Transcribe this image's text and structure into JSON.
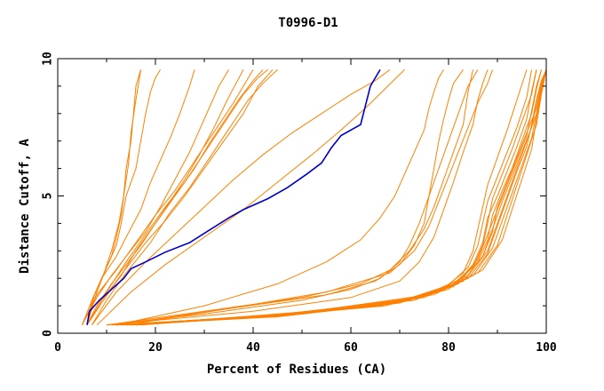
{
  "chart_data": {
    "type": "line",
    "title": "T0996-D1",
    "xlabel": "Percent of Residues (CA)",
    "ylabel": "Distance Cutoff, A",
    "xlim": [
      0,
      100
    ],
    "ylim": [
      0,
      10
    ],
    "x_ticks": [
      "0",
      "20",
      "40",
      "60",
      "80",
      "100"
    ],
    "y_ticks": [
      "0",
      "5",
      "10"
    ],
    "grid": false,
    "legend": "none",
    "colors": {
      "highlight": "#0000cc",
      "others": "#ff8000"
    },
    "highlight_series": {
      "x": [
        6,
        6.5,
        8.5,
        11,
        13.5,
        15,
        18,
        22,
        27,
        31,
        35,
        38,
        43,
        47,
        51,
        54,
        56,
        58,
        62,
        64,
        66
      ],
      "y": [
        0.3,
        0.8,
        1.2,
        1.6,
        2,
        2.35,
        2.6,
        2.95,
        3.3,
        3.75,
        4.2,
        4.5,
        4.9,
        5.3,
        5.8,
        6.2,
        6.75,
        7.2,
        7.6,
        9,
        9.6
      ]
    },
    "series": [
      {
        "x": [
          6,
          7,
          9,
          11,
          12,
          13,
          13.5,
          14,
          15,
          15.5,
          16,
          17
        ],
        "y": [
          0.3,
          1.2,
          2,
          2.8,
          3.5,
          4.3,
          5,
          6,
          7,
          8,
          9,
          9.6
        ]
      },
      {
        "x": [
          6,
          7.5,
          9.5,
          11,
          12.5,
          13.5,
          14.5,
          15,
          16,
          17
        ],
        "y": [
          0.3,
          1.4,
          2.2,
          3,
          4,
          5,
          6.2,
          7.3,
          8.5,
          9.6
        ]
      },
      {
        "x": [
          6,
          8,
          10,
          12,
          13,
          14,
          16,
          17,
          18,
          19,
          20,
          21
        ],
        "y": [
          0.3,
          1.5,
          2.4,
          3.2,
          4,
          5,
          6,
          7,
          8,
          8.8,
          9.3,
          9.6
        ]
      },
      {
        "x": [
          5,
          7,
          9,
          12,
          14,
          17,
          19,
          21,
          23,
          25,
          27,
          28
        ],
        "y": [
          0.3,
          1.2,
          2,
          2.8,
          3.5,
          4.5,
          5.5,
          6.3,
          7.1,
          8,
          9,
          9.6
        ]
      },
      {
        "x": [
          6,
          8,
          11,
          14,
          17,
          20,
          23,
          26,
          29,
          32,
          35,
          38
        ],
        "y": [
          0.3,
          1,
          1.8,
          2.5,
          3.2,
          4,
          4.8,
          5.6,
          6.5,
          7.5,
          8.6,
          9.6
        ]
      },
      {
        "x": [
          6,
          9,
          12,
          15,
          18,
          22,
          26,
          30,
          34,
          38,
          41,
          44
        ],
        "y": [
          0.3,
          1.1,
          1.9,
          2.6,
          3.3,
          4.1,
          5,
          6,
          7,
          8,
          9,
          9.6
        ]
      },
      {
        "x": [
          5,
          8,
          11,
          14,
          18,
          21,
          24,
          27,
          29,
          31,
          33,
          35
        ],
        "y": [
          0.3,
          1.3,
          2.1,
          2.8,
          3.7,
          4.6,
          5.6,
          6.6,
          7.4,
          8.2,
          9,
          9.6
        ]
      },
      {
        "x": [
          6,
          9,
          13,
          16,
          20,
          24,
          28,
          31,
          34,
          37,
          40,
          42
        ],
        "y": [
          0.3,
          1.2,
          2.1,
          3,
          4,
          5,
          6,
          6.9,
          7.7,
          8.5,
          9.2,
          9.6
        ]
      },
      {
        "x": [
          5,
          8,
          12,
          16,
          20,
          24,
          27,
          30,
          33,
          36,
          38,
          40
        ],
        "y": [
          0.3,
          1.4,
          2.3,
          3.3,
          4.3,
          5.2,
          6,
          6.8,
          7.6,
          8.4,
          9,
          9.6
        ]
      },
      {
        "x": [
          7,
          10,
          14,
          19,
          23,
          27,
          30,
          33,
          36,
          39,
          42,
          45
        ],
        "y": [
          0.3,
          1.2,
          2.2,
          3.3,
          4.4,
          5.3,
          6.1,
          6.9,
          7.7,
          8.5,
          9.1,
          9.6
        ]
      },
      {
        "x": [
          6,
          10,
          14,
          18,
          22,
          26,
          29,
          32,
          35,
          38,
          41,
          43
        ],
        "y": [
          0.3,
          1.5,
          2.6,
          3.6,
          4.6,
          5.5,
          6.3,
          7.1,
          7.9,
          8.7,
          9.3,
          9.6
        ]
      },
      {
        "x": [
          7,
          12,
          18,
          24,
          30,
          36,
          42,
          48,
          54,
          60,
          65,
          68
        ],
        "y": [
          0.3,
          1.5,
          2.6,
          3.6,
          4.6,
          5.6,
          6.5,
          7.3,
          8,
          8.7,
          9.2,
          9.6
        ]
      },
      {
        "x": [
          8,
          15,
          22,
          30,
          38,
          45,
          52,
          58,
          63,
          67,
          71
        ],
        "y": [
          0.3,
          1.5,
          2.5,
          3.5,
          4.5,
          5.5,
          6.5,
          7.4,
          8.2,
          8.9,
          9.6
        ]
      },
      {
        "x": [
          10,
          30,
          50,
          60,
          66,
          70,
          72,
          74,
          76,
          78,
          80,
          82,
          84,
          86
        ],
        "y": [
          0.3,
          0.7,
          1.2,
          1.6,
          2,
          2.6,
          3.2,
          4,
          5,
          6,
          7,
          8,
          9,
          9.6
        ]
      },
      {
        "x": [
          10,
          30,
          50,
          62,
          68,
          72,
          75,
          77,
          79,
          81,
          83,
          84,
          85
        ],
        "y": [
          0.3,
          0.8,
          1.3,
          1.8,
          2.3,
          3,
          3.8,
          4.6,
          5.6,
          6.6,
          7.6,
          8.8,
          9.6
        ]
      },
      {
        "x": [
          12,
          35,
          55,
          65,
          70,
          73,
          75,
          76,
          77,
          78,
          79,
          80,
          81,
          83
        ],
        "y": [
          0.3,
          0.9,
          1.4,
          1.9,
          2.5,
          3.2,
          4,
          5,
          6,
          7,
          7.8,
          8.5,
          9.1,
          9.6
        ]
      },
      {
        "x": [
          10,
          40,
          60,
          70,
          74,
          77,
          79,
          81,
          83,
          85,
          86,
          87,
          88
        ],
        "y": [
          0.3,
          0.8,
          1.3,
          1.9,
          2.6,
          3.5,
          4.5,
          5.5,
          6.6,
          7.6,
          8.5,
          9.1,
          9.6
        ]
      },
      {
        "x": [
          12,
          30,
          45,
          55,
          62,
          66,
          69,
          71,
          73,
          75,
          76,
          77,
          78,
          79
        ],
        "y": [
          0.3,
          1,
          1.8,
          2.6,
          3.4,
          4.2,
          5,
          5.8,
          6.6,
          7.4,
          8.2,
          8.8,
          9.3,
          9.6
        ]
      },
      {
        "x": [
          14,
          35,
          55,
          68,
          73,
          76,
          78,
          80,
          82,
          84,
          86,
          88,
          89
        ],
        "y": [
          0.3,
          0.9,
          1.5,
          2.2,
          3,
          3.9,
          4.8,
          5.7,
          6.6,
          7.5,
          8.4,
          9.1,
          9.6
        ]
      },
      {
        "x": [
          11,
          40,
          65,
          78,
          83,
          85,
          86,
          87,
          88,
          90,
          92,
          94,
          96
        ],
        "y": [
          0.3,
          0.6,
          1,
          1.5,
          2.2,
          3,
          3.8,
          4.6,
          5.4,
          6.4,
          7.4,
          8.5,
          9.6
        ]
      },
      {
        "x": [
          11,
          40,
          66,
          79,
          84,
          86,
          87,
          88,
          90,
          92,
          94,
          96,
          97
        ],
        "y": [
          0.3,
          0.6,
          1,
          1.6,
          2.4,
          3.2,
          4,
          4.8,
          5.7,
          6.6,
          7.5,
          8.6,
          9.6
        ]
      },
      {
        "x": [
          12,
          42,
          67,
          80,
          85,
          87,
          88,
          89,
          91,
          93,
          95,
          97,
          98
        ],
        "y": [
          0.3,
          0.6,
          1,
          1.6,
          2.4,
          3.2,
          4,
          4.9,
          5.8,
          6.7,
          7.7,
          8.7,
          9.6
        ]
      },
      {
        "x": [
          12,
          43,
          68,
          81,
          85,
          87,
          88,
          90,
          92,
          94,
          96,
          97,
          98
        ],
        "y": [
          0.3,
          0.6,
          1.1,
          1.7,
          2.5,
          3.3,
          4.2,
          5,
          5.9,
          6.8,
          7.8,
          8.8,
          9.6
        ]
      },
      {
        "x": [
          13,
          44,
          69,
          81,
          86,
          88,
          89,
          91,
          93,
          95,
          97,
          98,
          99
        ],
        "y": [
          0.3,
          0.6,
          1.1,
          1.8,
          2.6,
          3.4,
          4.3,
          5.2,
          6,
          7,
          8,
          8.9,
          9.6
        ]
      },
      {
        "x": [
          13,
          45,
          70,
          82,
          86,
          88,
          90,
          92,
          94,
          96,
          97,
          98,
          99
        ],
        "y": [
          0.3,
          0.6,
          1.1,
          1.8,
          2.7,
          3.6,
          4.5,
          5.4,
          6.3,
          7.2,
          8.1,
          9,
          9.6
        ]
      },
      {
        "x": [
          14,
          46,
          71,
          83,
          87,
          89,
          90,
          92,
          94,
          96,
          98,
          99,
          100
        ],
        "y": [
          0.3,
          0.7,
          1.2,
          1.9,
          2.8,
          3.7,
          4.6,
          5.5,
          6.4,
          7.3,
          8.2,
          9,
          9.6
        ]
      },
      {
        "x": [
          14,
          47,
          72,
          83,
          87,
          89,
          91,
          93,
          95,
          97,
          98,
          99,
          100
        ],
        "y": [
          0.3,
          0.7,
          1.2,
          1.9,
          2.8,
          3.8,
          4.8,
          5.7,
          6.6,
          7.5,
          8.4,
          9.1,
          9.6
        ]
      },
      {
        "x": [
          15,
          48,
          73,
          84,
          88,
          90,
          92,
          94,
          96,
          97,
          98,
          99,
          100
        ],
        "y": [
          0.3,
          0.7,
          1.2,
          2,
          2.9,
          3.9,
          4.9,
          5.9,
          6.8,
          7.6,
          8.5,
          9.2,
          9.6
        ]
      },
      {
        "x": [
          15,
          48,
          74,
          84,
          88,
          90,
          92,
          94,
          96,
          98,
          99,
          100
        ],
        "y": [
          0.3,
          0.7,
          1.3,
          2.1,
          3,
          4,
          5,
          6,
          7,
          8,
          8.9,
          9.6
        ]
      },
      {
        "x": [
          16,
          50,
          75,
          85,
          89,
          91,
          93,
          95,
          97,
          98,
          99,
          100
        ],
        "y": [
          0.3,
          0.7,
          1.3,
          2.1,
          3.1,
          4.1,
          5.1,
          6.1,
          7.1,
          8,
          9,
          9.6
        ]
      },
      {
        "x": [
          16,
          52,
          76,
          86,
          90,
          92,
          94,
          96,
          98,
          99,
          100
        ],
        "y": [
          0.3,
          0.8,
          1.4,
          2.2,
          3.2,
          4.3,
          5.4,
          6.5,
          7.6,
          8.7,
          9.6
        ]
      },
      {
        "x": [
          17,
          54,
          77,
          87,
          91,
          93,
          95,
          97,
          98,
          99,
          100
        ],
        "y": [
          0.3,
          0.8,
          1.4,
          2.3,
          3.4,
          4.5,
          5.6,
          6.7,
          7.8,
          8.8,
          9.6
        ]
      }
    ]
  }
}
